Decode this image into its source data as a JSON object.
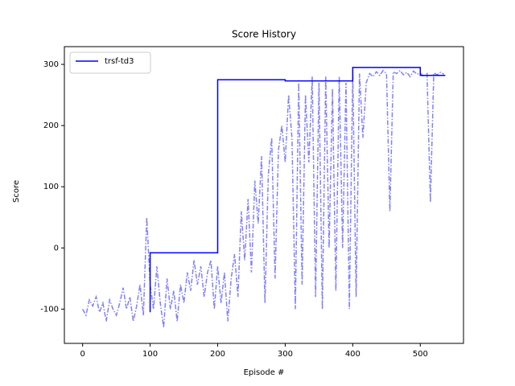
{
  "chart_data": {
    "type": "line",
    "title": "Score History",
    "x_label": "Episode #",
    "y_label": "Score",
    "xlim": [
      -27,
      564
    ],
    "ylim": [
      -156,
      329
    ],
    "xticks": [
      0,
      100,
      200,
      300,
      400,
      500
    ],
    "yticks": [
      -100,
      0,
      100,
      200,
      300
    ],
    "grid": false,
    "legend": "upper left",
    "series": [
      {
        "color": "#8080ff",
        "style": "dashdot",
        "x": [
          0,
          5,
          10,
          15,
          20,
          25,
          30,
          35,
          40,
          45,
          50,
          55,
          60,
          65,
          70,
          75,
          80,
          85,
          90,
          95,
          100,
          105,
          110,
          115,
          120,
          125,
          130,
          135,
          140,
          145,
          150,
          155,
          160,
          165,
          170,
          175,
          180,
          185,
          190,
          195,
          200,
          205,
          210,
          215,
          220,
          225,
          230,
          235,
          240,
          245,
          250,
          255,
          260,
          265,
          270,
          275,
          280,
          285,
          290,
          295,
          300,
          305,
          310,
          315,
          320,
          325,
          330,
          335,
          340,
          345,
          350,
          355,
          360,
          365,
          370,
          375,
          380,
          385,
          390,
          395,
          400,
          405,
          410,
          415,
          420,
          425,
          430,
          435,
          440,
          445,
          450,
          455,
          460,
          465,
          470,
          475,
          480,
          485,
          490,
          495,
          500,
          505,
          510,
          515,
          520,
          525,
          530,
          535
        ],
        "values": [
          -100,
          -110,
          -85,
          -95,
          -80,
          -105,
          -90,
          -120,
          -85,
          -100,
          -110,
          -90,
          -65,
          -100,
          -80,
          -120,
          -95,
          -60,
          -110,
          50,
          -60,
          -100,
          -30,
          -90,
          -130,
          -50,
          -100,
          -70,
          -120,
          -60,
          -90,
          -40,
          -70,
          -20,
          -60,
          -30,
          -80,
          -40,
          -20,
          -100,
          -30,
          -90,
          -40,
          -120,
          -50,
          -10,
          -80,
          60,
          -20,
          80,
          -40,
          110,
          40,
          150,
          -90,
          120,
          180,
          -50,
          160,
          200,
          140,
          250,
          180,
          -100,
          270,
          -60,
          250,
          140,
          280,
          -80,
          270,
          -100,
          280,
          0,
          260,
          -70,
          280,
          0,
          270,
          -100,
          290,
          -80,
          285,
          180,
          270,
          285,
          280,
          288,
          282,
          290,
          285,
          60,
          288,
          285,
          290,
          283,
          287,
          280,
          289,
          284,
          286,
          280,
          285,
          75,
          286,
          283,
          287,
          284
        ]
      },
      {
        "name": "trsf-td3",
        "color": "#0000ff",
        "style": "solid",
        "x": [
          100,
          100,
          200,
          200,
          300,
          300,
          400,
          400,
          500,
          500,
          537
        ],
        "values": [
          -105,
          -8,
          -8,
          275,
          275,
          273,
          273,
          295,
          295,
          282,
          282
        ]
      }
    ]
  }
}
